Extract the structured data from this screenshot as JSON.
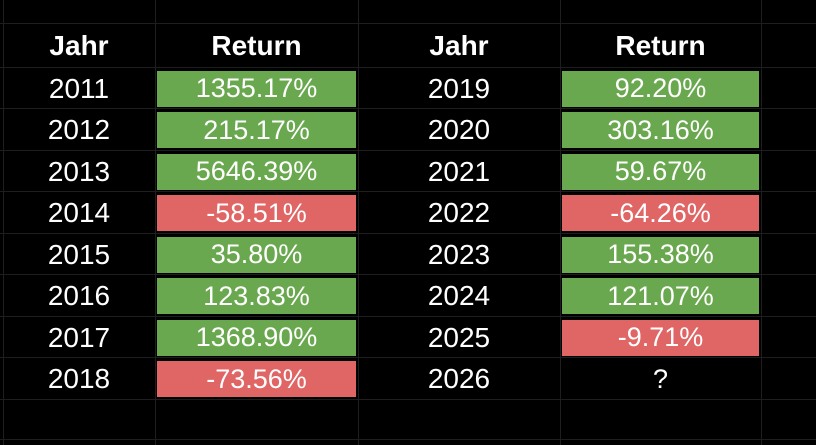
{
  "colors": {
    "background": "#000000",
    "gridline": "#1e1e1e",
    "text": "#ffffff",
    "positive": "#6aa84f",
    "negative": "#e06666"
  },
  "tables": [
    {
      "headers": {
        "year": "Jahr",
        "return": "Return"
      },
      "rows": [
        {
          "year": "2011",
          "return": "1355.17%",
          "sentiment": "positive"
        },
        {
          "year": "2012",
          "return": "215.17%",
          "sentiment": "positive"
        },
        {
          "year": "2013",
          "return": "5646.39%",
          "sentiment": "positive"
        },
        {
          "year": "2014",
          "return": "-58.51%",
          "sentiment": "negative"
        },
        {
          "year": "2015",
          "return": "35.80%",
          "sentiment": "positive"
        },
        {
          "year": "2016",
          "return": "123.83%",
          "sentiment": "positive"
        },
        {
          "year": "2017",
          "return": "1368.90%",
          "sentiment": "positive"
        },
        {
          "year": "2018",
          "return": "-73.56%",
          "sentiment": "negative"
        }
      ]
    },
    {
      "headers": {
        "year": "Jahr",
        "return": "Return"
      },
      "rows": [
        {
          "year": "2019",
          "return": "92.20%",
          "sentiment": "positive"
        },
        {
          "year": "2020",
          "return": "303.16%",
          "sentiment": "positive"
        },
        {
          "year": "2021",
          "return": "59.67%",
          "sentiment": "positive"
        },
        {
          "year": "2022",
          "return": "-64.26%",
          "sentiment": "negative"
        },
        {
          "year": "2023",
          "return": "155.38%",
          "sentiment": "positive"
        },
        {
          "year": "2024",
          "return": "121.07%",
          "sentiment": "positive"
        },
        {
          "year": "2025",
          "return": "-9.71%",
          "sentiment": "negative"
        },
        {
          "year": "2026",
          "return": "?",
          "sentiment": "unknown"
        }
      ]
    }
  ]
}
